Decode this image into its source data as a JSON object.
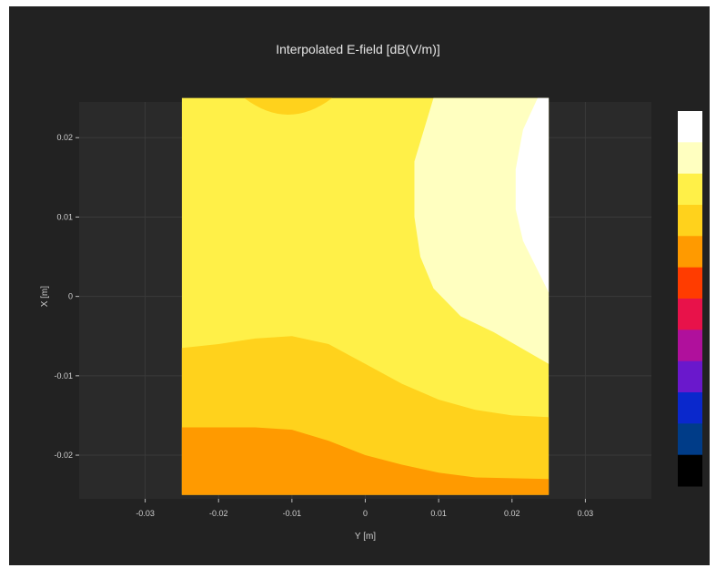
{
  "chart_data": {
    "type": "heatmap",
    "subtype": "filled-contour",
    "title": "Interpolated E-field [dB(V/m)]",
    "xlabel": "Y [m]",
    "ylabel": "X [m]",
    "xlim": [
      -0.039,
      0.039
    ],
    "ylim": [
      -0.0255,
      0.0245
    ],
    "data_extent": {
      "y_m": [
        -0.025,
        0.025
      ],
      "x_m": [
        -0.025,
        0.025
      ]
    },
    "x_ticks": [
      "-0.03",
      "-0.02",
      "-0.01",
      "0",
      "0.01",
      "0.02",
      "0.03"
    ],
    "y_ticks": [
      "0.02",
      "0.01",
      "0",
      "-0.01",
      "-0.02"
    ],
    "grid": true,
    "colorbar": {
      "position": "right",
      "labels_shown": false,
      "colors_top_to_bottom": [
        "#ffffff",
        "#ffffc0",
        "#fff048",
        "#ffd21c",
        "#ff9a00",
        "#ff3c00",
        "#e8124a",
        "#b0109c",
        "#6a18cc",
        "#0a28cc",
        "#003c88",
        "#000000"
      ]
    },
    "contour_levels": [
      {
        "level": 5,
        "color": "#ff9a00",
        "boundary": [
          [
            -0.025,
            -0.0165
          ],
          [
            -0.015,
            -0.0165
          ],
          [
            -0.01,
            -0.0168
          ],
          [
            -0.005,
            -0.0182
          ],
          [
            0.0,
            -0.02
          ],
          [
            0.005,
            -0.0212
          ],
          [
            0.01,
            -0.0222
          ],
          [
            0.015,
            -0.0228
          ],
          [
            0.025,
            -0.023
          ]
        ]
      },
      {
        "level": 4,
        "color": "#ffd21c",
        "boundary": [
          [
            -0.025,
            -0.0065
          ],
          [
            -0.02,
            -0.006
          ],
          [
            -0.015,
            -0.0053
          ],
          [
            -0.01,
            -0.005
          ],
          [
            -0.005,
            -0.006
          ],
          [
            0.0,
            -0.0085
          ],
          [
            0.005,
            -0.011
          ],
          [
            0.01,
            -0.013
          ],
          [
            0.015,
            -0.0143
          ],
          [
            0.02,
            -0.015
          ],
          [
            0.025,
            -0.0152
          ]
        ]
      },
      {
        "level": 3,
        "color": "#fff048"
      },
      {
        "level": 2,
        "color": "#ffffc0",
        "boundary": [
          [
            0.0093,
            0.025
          ],
          [
            0.0067,
            0.017
          ],
          [
            0.0067,
            0.01
          ],
          [
            0.0075,
            0.005
          ],
          [
            0.0093,
            0.001
          ],
          [
            0.013,
            -0.0025
          ],
          [
            0.0175,
            -0.0045
          ],
          [
            0.025,
            -0.0085
          ]
        ]
      },
      {
        "level": 1,
        "color": "#ffffff",
        "boundary": [
          [
            0.0235,
            0.025
          ],
          [
            0.0215,
            0.021
          ],
          [
            0.0205,
            0.016
          ],
          [
            0.0205,
            0.011
          ],
          [
            0.0215,
            0.007
          ],
          [
            0.025,
            0.0005
          ]
        ]
      }
    ],
    "top_patch": {
      "color": "#ffd21c",
      "y_center_m": -0.0105,
      "half_width_m": 0.006,
      "depth_m": 0.0021
    }
  }
}
